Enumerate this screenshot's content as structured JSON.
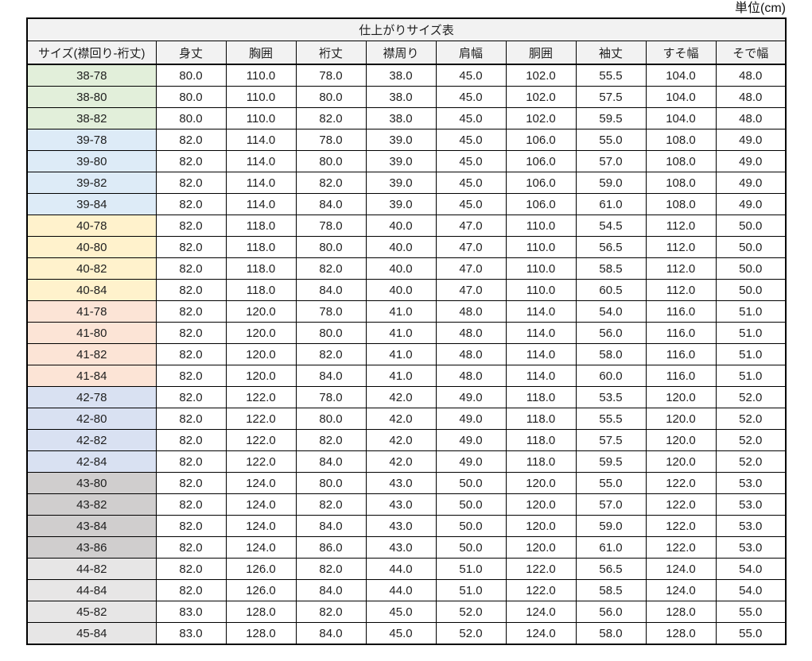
{
  "unit_label": "単位(cm)",
  "chart_data": {
    "type": "table",
    "title": "仕上がりサイズ表",
    "unit_label": "単位(cm)",
    "unit": "cm",
    "columns": [
      "サイズ(襟回り-裄丈)",
      "身丈",
      "胸囲",
      "裄丈",
      "襟周り",
      "肩幅",
      "胴囲",
      "袖丈",
      "すそ幅",
      "そで幅"
    ],
    "rows": [
      {
        "size": "38-78",
        "group": "g38",
        "values": [
          80.0,
          110.0,
          78.0,
          38.0,
          45.0,
          102.0,
          55.5,
          104.0,
          48.0
        ]
      },
      {
        "size": "38-80",
        "group": "g38",
        "values": [
          80.0,
          110.0,
          80.0,
          38.0,
          45.0,
          102.0,
          57.5,
          104.0,
          48.0
        ]
      },
      {
        "size": "38-82",
        "group": "g38",
        "values": [
          80.0,
          110.0,
          82.0,
          38.0,
          45.0,
          102.0,
          59.5,
          104.0,
          48.0
        ]
      },
      {
        "size": "39-78",
        "group": "g39",
        "values": [
          82.0,
          114.0,
          78.0,
          39.0,
          45.0,
          106.0,
          55.0,
          108.0,
          49.0
        ]
      },
      {
        "size": "39-80",
        "group": "g39",
        "values": [
          82.0,
          114.0,
          80.0,
          39.0,
          45.0,
          106.0,
          57.0,
          108.0,
          49.0
        ]
      },
      {
        "size": "39-82",
        "group": "g39",
        "values": [
          82.0,
          114.0,
          82.0,
          39.0,
          45.0,
          106.0,
          59.0,
          108.0,
          49.0
        ]
      },
      {
        "size": "39-84",
        "group": "g39",
        "values": [
          82.0,
          114.0,
          84.0,
          39.0,
          45.0,
          106.0,
          61.0,
          108.0,
          49.0
        ]
      },
      {
        "size": "40-78",
        "group": "g40",
        "values": [
          82.0,
          118.0,
          78.0,
          40.0,
          47.0,
          110.0,
          54.5,
          112.0,
          50.0
        ]
      },
      {
        "size": "40-80",
        "group": "g40",
        "values": [
          82.0,
          118.0,
          80.0,
          40.0,
          47.0,
          110.0,
          56.5,
          112.0,
          50.0
        ]
      },
      {
        "size": "40-82",
        "group": "g40",
        "values": [
          82.0,
          118.0,
          82.0,
          40.0,
          47.0,
          110.0,
          58.5,
          112.0,
          50.0
        ]
      },
      {
        "size": "40-84",
        "group": "g40",
        "values": [
          82.0,
          118.0,
          84.0,
          40.0,
          47.0,
          110.0,
          60.5,
          112.0,
          50.0
        ]
      },
      {
        "size": "41-78",
        "group": "g41",
        "values": [
          82.0,
          120.0,
          78.0,
          41.0,
          48.0,
          114.0,
          54.0,
          116.0,
          51.0
        ]
      },
      {
        "size": "41-80",
        "group": "g41",
        "values": [
          82.0,
          120.0,
          80.0,
          41.0,
          48.0,
          114.0,
          56.0,
          116.0,
          51.0
        ]
      },
      {
        "size": "41-82",
        "group": "g41",
        "values": [
          82.0,
          120.0,
          82.0,
          41.0,
          48.0,
          114.0,
          58.0,
          116.0,
          51.0
        ]
      },
      {
        "size": "41-84",
        "group": "g41",
        "values": [
          82.0,
          120.0,
          84.0,
          41.0,
          48.0,
          114.0,
          60.0,
          116.0,
          51.0
        ]
      },
      {
        "size": "42-78",
        "group": "g42",
        "values": [
          82.0,
          122.0,
          78.0,
          42.0,
          49.0,
          118.0,
          53.5,
          120.0,
          52.0
        ]
      },
      {
        "size": "42-80",
        "group": "g42",
        "values": [
          82.0,
          122.0,
          80.0,
          42.0,
          49.0,
          118.0,
          55.5,
          120.0,
          52.0
        ]
      },
      {
        "size": "42-82",
        "group": "g42",
        "values": [
          82.0,
          122.0,
          82.0,
          42.0,
          49.0,
          118.0,
          57.5,
          120.0,
          52.0
        ]
      },
      {
        "size": "42-84",
        "group": "g42",
        "values": [
          82.0,
          122.0,
          84.0,
          42.0,
          49.0,
          118.0,
          59.5,
          120.0,
          52.0
        ]
      },
      {
        "size": "43-80",
        "group": "g43",
        "values": [
          82.0,
          124.0,
          80.0,
          43.0,
          50.0,
          120.0,
          55.0,
          122.0,
          53.0
        ]
      },
      {
        "size": "43-82",
        "group": "g43",
        "values": [
          82.0,
          124.0,
          82.0,
          43.0,
          50.0,
          120.0,
          57.0,
          122.0,
          53.0
        ]
      },
      {
        "size": "43-84",
        "group": "g43",
        "values": [
          82.0,
          124.0,
          84.0,
          43.0,
          50.0,
          120.0,
          59.0,
          122.0,
          53.0
        ]
      },
      {
        "size": "43-86",
        "group": "g43",
        "values": [
          82.0,
          124.0,
          86.0,
          43.0,
          50.0,
          120.0,
          61.0,
          122.0,
          53.0
        ]
      },
      {
        "size": "44-82",
        "group": "g44",
        "values": [
          82.0,
          126.0,
          82.0,
          44.0,
          51.0,
          122.0,
          56.5,
          124.0,
          54.0
        ]
      },
      {
        "size": "44-84",
        "group": "g44",
        "values": [
          82.0,
          126.0,
          84.0,
          44.0,
          51.0,
          122.0,
          58.5,
          124.0,
          54.0
        ]
      },
      {
        "size": "45-82",
        "group": "g45",
        "values": [
          83.0,
          128.0,
          82.0,
          45.0,
          52.0,
          124.0,
          56.0,
          128.0,
          55.0
        ]
      },
      {
        "size": "45-84",
        "group": "g45",
        "values": [
          83.0,
          128.0,
          84.0,
          45.0,
          52.0,
          124.0,
          58.0,
          128.0,
          55.0
        ]
      }
    ],
    "group_colors": {
      "g38": "#E2EFDA",
      "g39": "#DDEBF7",
      "g40": "#FFF2CC",
      "g41": "#FCE4D6",
      "g42": "#D9E1F2",
      "g43": "#D0CECE",
      "g44": "#E7E6E6",
      "g45": "#E7E6E6"
    },
    "header_bg": "#F2F2F2",
    "border_color": "#000000",
    "layout": {
      "grid": "full-borders",
      "value_format": "one-decimal",
      "columns_count": 10,
      "data_rows_count": 27
    }
  }
}
